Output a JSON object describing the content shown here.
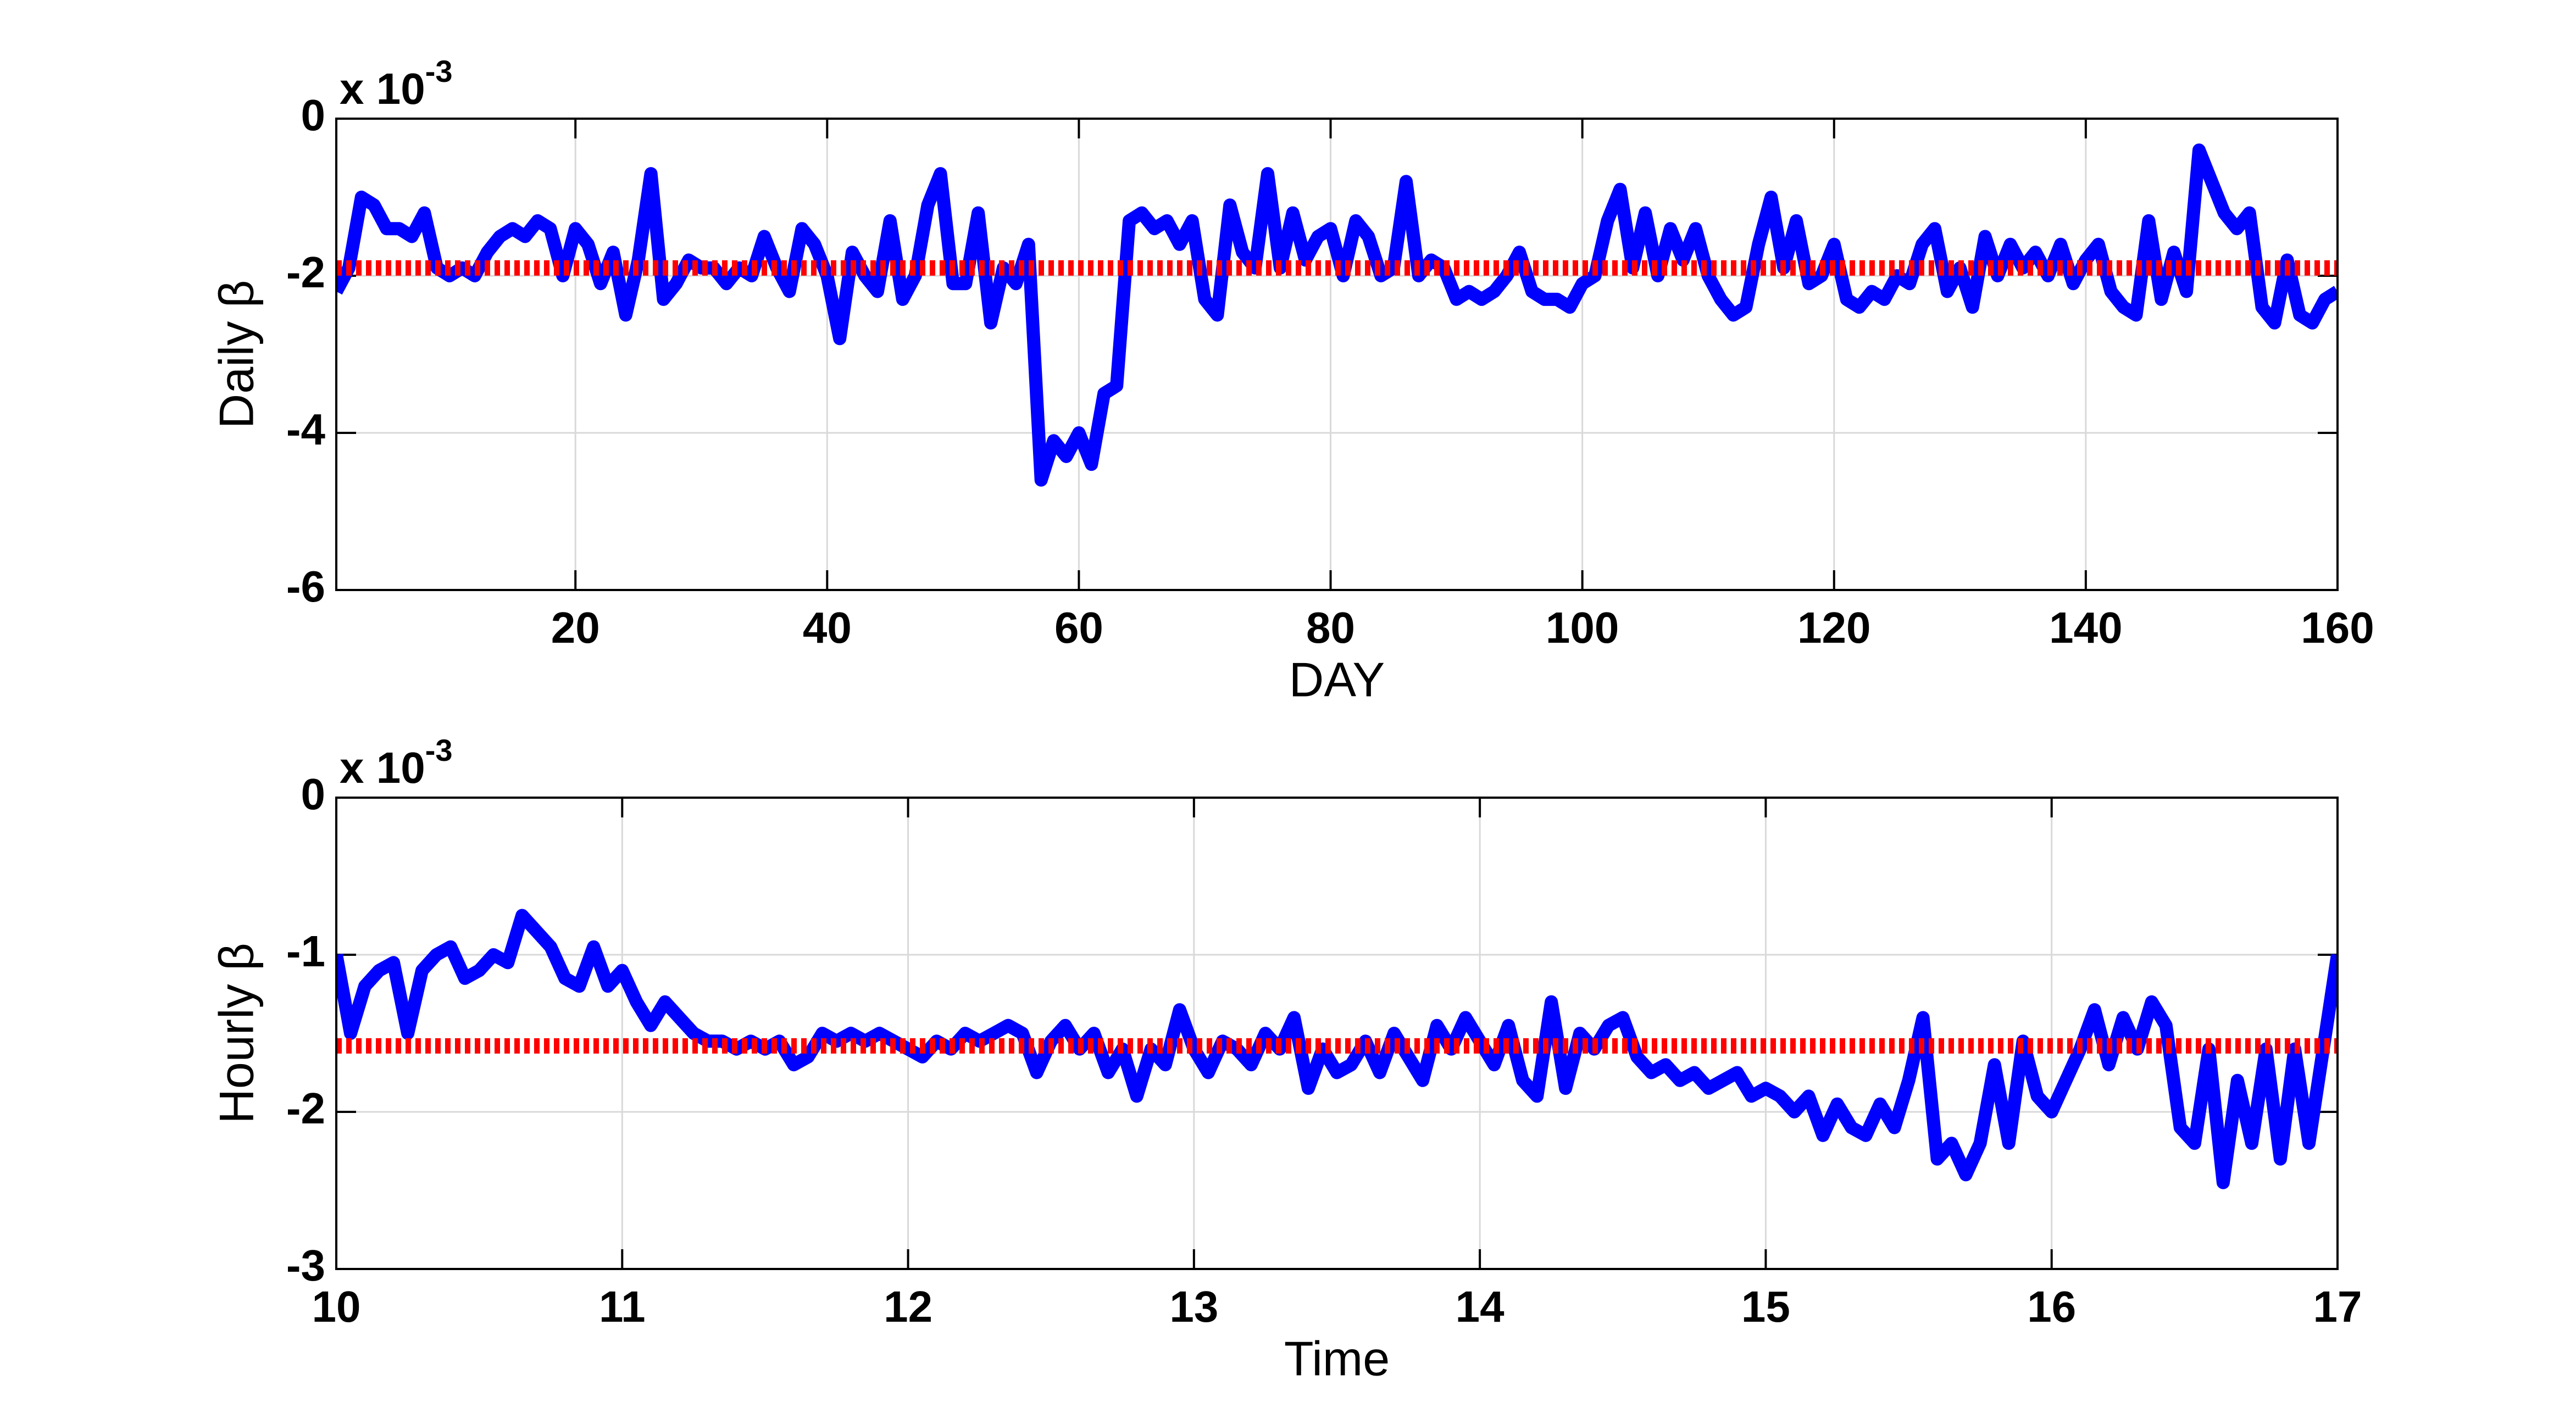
{
  "chart_data": [
    {
      "type": "line",
      "ylabel": "Daily β",
      "xlabel": "DAY",
      "axis_multiplier": {
        "base": "x 10",
        "exponent": "-3"
      },
      "xlim": [
        1,
        160
      ],
      "xticks": [
        20,
        40,
        60,
        80,
        100,
        120,
        140,
        160
      ],
      "ylim": [
        -6,
        0
      ],
      "yticks": [
        -6,
        -4,
        -2,
        0
      ],
      "grid": true,
      "x": [
        1,
        2,
        3,
        4,
        5,
        6,
        7,
        8,
        9,
        10,
        11,
        12,
        13,
        14,
        15,
        16,
        17,
        18,
        19,
        20,
        21,
        22,
        23,
        24,
        25,
        26,
        27,
        28,
        29,
        30,
        31,
        32,
        33,
        34,
        35,
        36,
        37,
        38,
        39,
        40,
        41,
        42,
        43,
        44,
        45,
        46,
        47,
        48,
        49,
        50,
        51,
        52,
        53,
        54,
        55,
        56,
        57,
        58,
        59,
        60,
        61,
        62,
        63,
        64,
        65,
        66,
        67,
        68,
        69,
        70,
        71,
        72,
        73,
        74,
        75,
        76,
        77,
        78,
        79,
        80,
        81,
        82,
        83,
        84,
        85,
        86,
        87,
        88,
        89,
        90,
        91,
        92,
        93,
        94,
        95,
        96,
        97,
        98,
        99,
        100,
        101,
        102,
        103,
        104,
        105,
        106,
        107,
        108,
        109,
        110,
        111,
        112,
        113,
        114,
        115,
        116,
        117,
        118,
        119,
        120,
        121,
        122,
        123,
        124,
        125,
        126,
        127,
        128,
        129,
        130,
        131,
        132,
        133,
        134,
        135,
        136,
        137,
        138,
        139,
        140,
        141,
        142,
        143,
        144,
        145,
        146,
        147,
        148,
        149,
        150,
        151,
        152,
        153,
        154,
        155,
        156,
        157,
        158,
        159,
        160
      ],
      "series": [
        {
          "color": "#0000ff",
          "values": [
            -2.2,
            -1.9,
            -1.0,
            -1.1,
            -1.4,
            -1.4,
            -1.5,
            -1.2,
            -1.9,
            -2.0,
            -1.9,
            -2.0,
            -1.7,
            -1.5,
            -1.4,
            -1.5,
            -1.3,
            -1.4,
            -2.0,
            -1.4,
            -1.6,
            -2.1,
            -1.7,
            -2.5,
            -1.8,
            -0.7,
            -2.3,
            -2.1,
            -1.8,
            -1.9,
            -1.9,
            -2.1,
            -1.9,
            -2.0,
            -1.5,
            -1.9,
            -2.2,
            -1.4,
            -1.6,
            -2.0,
            -2.8,
            -1.7,
            -2.0,
            -2.2,
            -1.3,
            -2.3,
            -2.0,
            -1.1,
            -0.7,
            -2.1,
            -2.1,
            -1.2,
            -2.6,
            -1.9,
            -2.1,
            -1.6,
            -4.6,
            -4.1,
            -4.3,
            -4.0,
            -4.4,
            -3.5,
            -3.4,
            -1.3,
            -1.2,
            -1.4,
            -1.3,
            -1.6,
            -1.3,
            -2.3,
            -2.5,
            -1.1,
            -1.7,
            -1.9,
            -0.7,
            -1.9,
            -1.2,
            -1.8,
            -1.5,
            -1.4,
            -2.0,
            -1.3,
            -1.5,
            -2.0,
            -1.9,
            -0.8,
            -2.0,
            -1.8,
            -1.9,
            -2.3,
            -2.2,
            -2.3,
            -2.2,
            -2.0,
            -1.7,
            -2.2,
            -2.3,
            -2.3,
            -2.4,
            -2.1,
            -2.0,
            -1.3,
            -0.9,
            -1.9,
            -1.2,
            -2.0,
            -1.4,
            -1.8,
            -1.4,
            -2.0,
            -2.3,
            -2.5,
            -2.4,
            -1.6,
            -1.0,
            -1.9,
            -1.3,
            -2.1,
            -2.0,
            -1.6,
            -2.3,
            -2.4,
            -2.2,
            -2.3,
            -2.0,
            -2.1,
            -1.6,
            -1.4,
            -2.2,
            -1.9,
            -2.4,
            -1.5,
            -2.0,
            -1.6,
            -1.9,
            -1.7,
            -2.0,
            -1.6,
            -2.1,
            -1.8,
            -1.6,
            -2.2,
            -2.4,
            -2.5,
            -1.3,
            -2.3,
            -1.7,
            -2.2,
            -0.4,
            -0.8,
            -1.2,
            -1.4,
            -1.2,
            -2.4,
            -2.6,
            -1.8,
            -2.5,
            -2.6,
            -2.3,
            -2.2
          ]
        }
      ],
      "reference_line": {
        "value": -1.9,
        "color": "#ff0000"
      }
    },
    {
      "type": "line",
      "ylabel": "Hourly β",
      "xlabel": "Time",
      "axis_multiplier": {
        "base": "x 10",
        "exponent": "-3"
      },
      "xlim": [
        10,
        17
      ],
      "xticks": [
        10,
        11,
        12,
        13,
        14,
        15,
        16,
        17
      ],
      "ylim": [
        -3,
        0
      ],
      "yticks": [
        -3,
        -2,
        -1,
        0
      ],
      "grid": true,
      "x": [
        10,
        10.05,
        10.1,
        10.15,
        10.2,
        10.25,
        10.3,
        10.35,
        10.4,
        10.45,
        10.5,
        10.55,
        10.6,
        10.65,
        10.7,
        10.75,
        10.8,
        10.85,
        10.9,
        10.95,
        11,
        11.05,
        11.1,
        11.15,
        11.2,
        11.25,
        11.3,
        11.35,
        11.4,
        11.45,
        11.5,
        11.55,
        11.6,
        11.65,
        11.7,
        11.75,
        11.8,
        11.85,
        11.9,
        11.95,
        12,
        12.05,
        12.1,
        12.15,
        12.2,
        12.25,
        12.3,
        12.35,
        12.4,
        12.45,
        12.5,
        12.55,
        12.6,
        12.65,
        12.7,
        12.75,
        12.8,
        12.85,
        12.9,
        12.95,
        13,
        13.05,
        13.1,
        13.15,
        13.2,
        13.25,
        13.3,
        13.35,
        13.4,
        13.45,
        13.5,
        13.55,
        13.6,
        13.65,
        13.7,
        13.75,
        13.8,
        13.85,
        13.9,
        13.95,
        14,
        14.05,
        14.1,
        14.15,
        14.2,
        14.25,
        14.3,
        14.35,
        14.4,
        14.45,
        14.5,
        14.55,
        14.6,
        14.65,
        14.7,
        14.75,
        14.8,
        14.85,
        14.9,
        14.95,
        15,
        15.05,
        15.1,
        15.15,
        15.2,
        15.25,
        15.3,
        15.35,
        15.4,
        15.45,
        15.5,
        15.55,
        15.6,
        15.65,
        15.7,
        15.75,
        15.8,
        15.85,
        15.9,
        15.95,
        16,
        16.05,
        16.1,
        16.15,
        16.2,
        16.25,
        16.3,
        16.35,
        16.4,
        16.45,
        16.5,
        16.55,
        16.6,
        16.65,
        16.7,
        16.75,
        16.8,
        16.85,
        16.9,
        16.95,
        17
      ],
      "series": [
        {
          "color": "#0000ff",
          "values": [
            -1.0,
            -1.5,
            -1.2,
            -1.1,
            -1.05,
            -1.5,
            -1.1,
            -1.0,
            -0.95,
            -1.15,
            -1.1,
            -1.0,
            -1.05,
            -0.75,
            -0.85,
            -0.95,
            -1.15,
            -1.2,
            -0.95,
            -1.2,
            -1.1,
            -1.3,
            -1.45,
            -1.3,
            -1.4,
            -1.5,
            -1.55,
            -1.55,
            -1.6,
            -1.55,
            -1.6,
            -1.55,
            -1.7,
            -1.65,
            -1.5,
            -1.55,
            -1.5,
            -1.55,
            -1.5,
            -1.55,
            -1.6,
            -1.65,
            -1.55,
            -1.6,
            -1.5,
            -1.55,
            -1.5,
            -1.45,
            -1.5,
            -1.75,
            -1.55,
            -1.45,
            -1.6,
            -1.5,
            -1.75,
            -1.6,
            -1.9,
            -1.6,
            -1.7,
            -1.35,
            -1.6,
            -1.75,
            -1.55,
            -1.6,
            -1.7,
            -1.5,
            -1.6,
            -1.4,
            -1.85,
            -1.6,
            -1.75,
            -1.7,
            -1.55,
            -1.75,
            -1.5,
            -1.65,
            -1.8,
            -1.45,
            -1.6,
            -1.4,
            -1.55,
            -1.7,
            -1.45,
            -1.8,
            -1.9,
            -1.3,
            -1.85,
            -1.5,
            -1.6,
            -1.45,
            -1.4,
            -1.65,
            -1.75,
            -1.7,
            -1.8,
            -1.75,
            -1.85,
            -1.8,
            -1.75,
            -1.9,
            -1.85,
            -1.9,
            -2.0,
            -1.9,
            -2.15,
            -1.95,
            -2.1,
            -2.15,
            -1.95,
            -2.1,
            -1.8,
            -1.4,
            -2.3,
            -2.2,
            -2.4,
            -2.2,
            -1.7,
            -2.2,
            -1.55,
            -1.9,
            -2.0,
            -1.8,
            -1.6,
            -1.35,
            -1.7,
            -1.4,
            -1.6,
            -1.3,
            -1.45,
            -2.1,
            -2.2,
            -1.6,
            -2.45,
            -1.8,
            -2.2,
            -1.6,
            -2.3,
            -1.6,
            -2.2,
            -1.6,
            -1.0
          ]
        }
      ],
      "reference_line": {
        "value": -1.58,
        "color": "#ff0000"
      }
    }
  ]
}
